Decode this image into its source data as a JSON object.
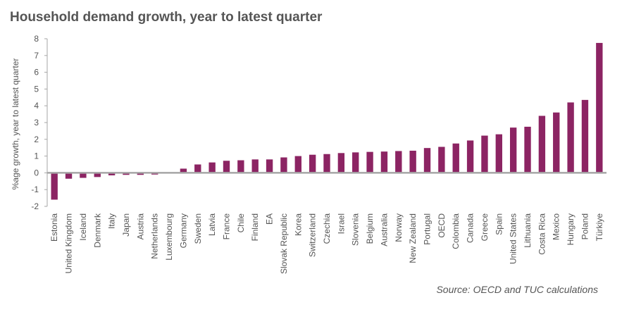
{
  "chart_data": {
    "type": "bar",
    "title": "Household demand growth, year to latest quarter",
    "ylabel": "%age growth, year to latest quarter",
    "xlabel": "",
    "ylim": [
      -2,
      8
    ],
    "yticks": [
      -2,
      -1,
      0,
      1,
      2,
      3,
      4,
      5,
      6,
      7,
      8
    ],
    "grid": false,
    "categories": [
      "Estonia",
      "United Kingdom",
      "Iceland",
      "Denmark",
      "Italy",
      "Japan",
      "Austria",
      "Netherlands",
      "Luxembourg",
      "Germany",
      "Sweden",
      "Latvia",
      "France",
      "Chile",
      "Finland",
      "EA",
      "Slovak Republic",
      "Korea",
      "Switzerland",
      "Czechia",
      "Israel",
      "Slovenia",
      "Belgium",
      "Australia",
      "Norway",
      "New Zealand",
      "Portugal",
      "OECD",
      "Colombia",
      "Canada",
      "Greece",
      "Spain",
      "United States",
      "Lithuania",
      "Costa Rica",
      "Mexico",
      "Hungary",
      "Poland",
      "Türkiye"
    ],
    "values": [
      -1.6,
      -0.35,
      -0.3,
      -0.25,
      -0.15,
      -0.12,
      -0.12,
      -0.1,
      0.0,
      0.25,
      0.5,
      0.62,
      0.72,
      0.75,
      0.8,
      0.8,
      0.92,
      1.0,
      1.08,
      1.12,
      1.18,
      1.22,
      1.25,
      1.27,
      1.3,
      1.32,
      1.48,
      1.55,
      1.75,
      1.93,
      2.22,
      2.3,
      2.7,
      2.75,
      3.4,
      3.6,
      4.2,
      4.35,
      7.75
    ],
    "bar_color": "#8c2463",
    "axis_color": "#a6a6a6"
  },
  "source": "Source: OECD and TUC calculations"
}
